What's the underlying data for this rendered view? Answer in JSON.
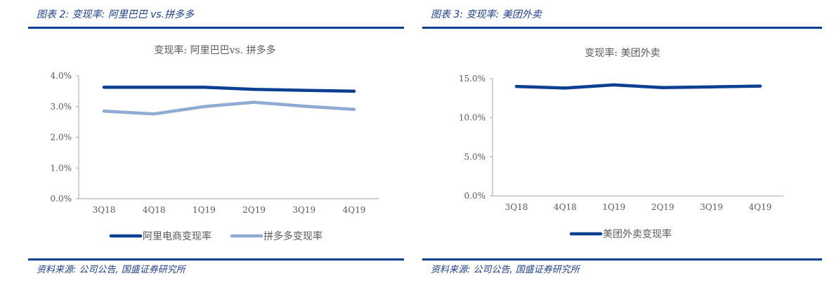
{
  "figures": [
    {
      "caption": "图表 2:  变现率:  阿里巴巴 vs.拼多多",
      "source": "资料来源:  公司公告,  国盛证券研究所"
    },
    {
      "caption": "图表 3:  变现率:  美团外卖",
      "source": "资料来源:  公司公告,  国盛证券研究所"
    }
  ],
  "colors": {
    "rule": "#0B3F91",
    "series_dark": "#0B3F91",
    "series_light": "#8FAAD3",
    "axis": "#A6A6A6",
    "text": "#595959"
  },
  "chart_data": [
    {
      "type": "line",
      "title": "变现率: 阿里巴巴vs. 拼多多",
      "categories": [
        "3Q18",
        "4Q18",
        "1Q19",
        "2Q19",
        "3Q19",
        "4Q19"
      ],
      "series": [
        {
          "name": "阿里电商变现率",
          "color": "#0B3F91",
          "values": [
            3.63,
            3.63,
            3.63,
            3.56,
            3.53,
            3.5
          ]
        },
        {
          "name": "拼多多变现率",
          "color": "#8FAAD3",
          "values": [
            2.85,
            2.76,
            3.0,
            3.14,
            3.01,
            2.91
          ]
        }
      ],
      "yticks": [
        "0.0%",
        "1.0%",
        "2.0%",
        "3.0%",
        "4.0%"
      ],
      "ylim": [
        0,
        4
      ],
      "xlabel": "",
      "ylabel": "",
      "grid": false,
      "legend_position": "bottom"
    },
    {
      "type": "line",
      "title": "变现率: 美团外卖",
      "categories": [
        "3Q18",
        "4Q18",
        "1Q19",
        "2Q19",
        "3Q19",
        "4Q19"
      ],
      "series": [
        {
          "name": "美团外卖变现率",
          "color": "#0B3F91",
          "values": [
            14.0,
            13.8,
            14.2,
            13.85,
            13.95,
            14.05
          ]
        }
      ],
      "yticks": [
        "0.0%",
        "5.0%",
        "10.0%",
        "15.0%"
      ],
      "ylim": [
        0,
        15
      ],
      "xlabel": "",
      "ylabel": "",
      "grid": false,
      "legend_position": "bottom"
    }
  ]
}
